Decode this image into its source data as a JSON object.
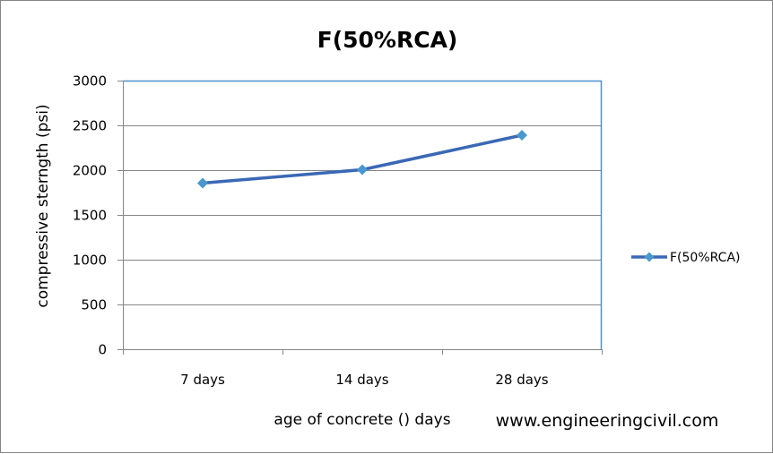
{
  "chart_data": {
    "type": "line",
    "title": "F(50%RCA)",
    "xlabel": "age of concrete () days",
    "ylabel": "compressive sterngth (psi)",
    "categories": [
      "7 days",
      "14 days",
      "28 days"
    ],
    "series": [
      {
        "name": "F(50%RCA)",
        "values": [
          1855,
          2005,
          2390
        ],
        "color": "#3A68B5",
        "marker_color": "#4A98CF",
        "marker": "diamond"
      }
    ],
    "ylim": [
      0,
      3000
    ],
    "yticks": [
      0,
      500,
      1000,
      1500,
      2000,
      2500,
      3000
    ],
    "grid": true,
    "legend": "right"
  },
  "watermark": "www.engineeringcivil.com",
  "colors": {
    "plot_border": "#4A90D0",
    "gridline": "#868686",
    "axis": "#868686"
  }
}
